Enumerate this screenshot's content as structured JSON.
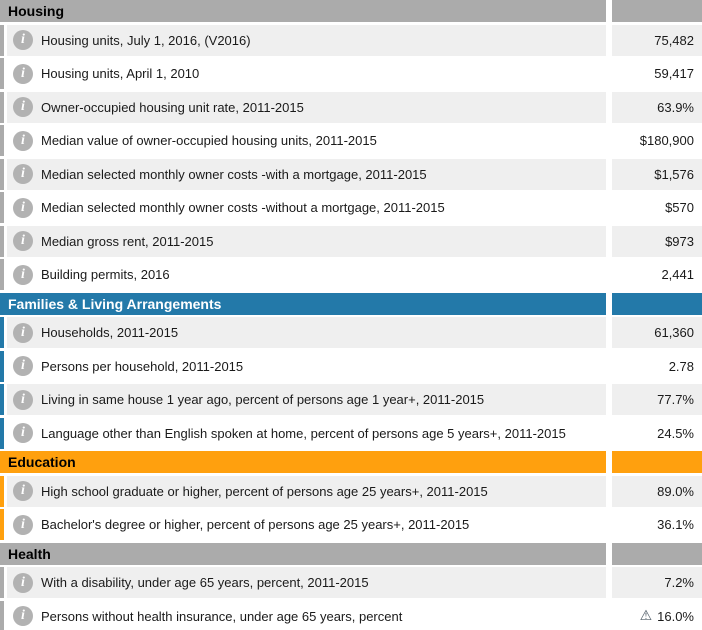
{
  "colors": {
    "gray_header": "#ababab",
    "blue_header": "#2379a9",
    "orange_header": "#ffa00e",
    "row_odd": "#efefef",
    "row_even": "#ffffff",
    "info_icon_bg": "#b2b2b2",
    "flag_icon": "#4e5b66",
    "header_text_dark": "#000000",
    "header_text_light": "#ffffff"
  },
  "table": {
    "sections": [
      {
        "id": "housing",
        "label": "Housing",
        "header_bg": "#ababab",
        "header_text": "#000000",
        "rows": [
          {
            "label": "Housing units, July 1, 2016, (V2016)",
            "value": "75,482",
            "flag": false
          },
          {
            "label": "Housing units, April 1, 2010",
            "value": "59,417",
            "flag": false
          },
          {
            "label": "Owner-occupied housing unit rate, 2011-2015",
            "value": "63.9%",
            "flag": false
          },
          {
            "label": "Median value of owner-occupied housing units, 2011-2015",
            "value": "$180,900",
            "flag": false
          },
          {
            "label": "Median selected monthly owner costs -with a mortgage, 2011-2015",
            "value": "$1,576",
            "flag": false
          },
          {
            "label": "Median selected monthly owner costs -without a mortgage, 2011-2015",
            "value": "$570",
            "flag": false
          },
          {
            "label": "Median gross rent, 2011-2015",
            "value": "$973",
            "flag": false
          },
          {
            "label": "Building permits, 2016",
            "value": "2,441",
            "flag": false
          }
        ]
      },
      {
        "id": "families-living-arrangements",
        "label": "Families & Living Arrangements",
        "header_bg": "#2379a9",
        "header_text": "#ffffff",
        "rows": [
          {
            "label": "Households, 2011-2015",
            "value": "61,360",
            "flag": false
          },
          {
            "label": "Persons per household, 2011-2015",
            "value": "2.78",
            "flag": false
          },
          {
            "label": "Living in same house 1 year ago, percent of persons age 1 year+, 2011-2015",
            "value": "77.7%",
            "flag": false
          },
          {
            "label": "Language other than English spoken at home, percent of persons age 5 years+, 2011-2015",
            "value": "24.5%",
            "flag": false
          }
        ]
      },
      {
        "id": "education",
        "label": "Education",
        "header_bg": "#ffa00e",
        "header_text": "#000000",
        "rows": [
          {
            "label": "High school graduate or higher, percent of persons age 25 years+, 2011-2015",
            "value": "89.0%",
            "flag": false
          },
          {
            "label": "Bachelor's degree or higher, percent of persons age 25 years+, 2011-2015",
            "value": "36.1%",
            "flag": false
          }
        ]
      },
      {
        "id": "health",
        "label": "Health",
        "header_bg": "#ababab",
        "header_text": "#000000",
        "rows": [
          {
            "label": "With a disability, under age 65 years, percent, 2011-2015",
            "value": "7.2%",
            "flag": false
          },
          {
            "label": "Persons without health insurance, under age 65 years, percent",
            "value": "16.0%",
            "flag": true
          }
        ]
      }
    ],
    "icons": {
      "info": "i",
      "flag": "⚠"
    }
  }
}
